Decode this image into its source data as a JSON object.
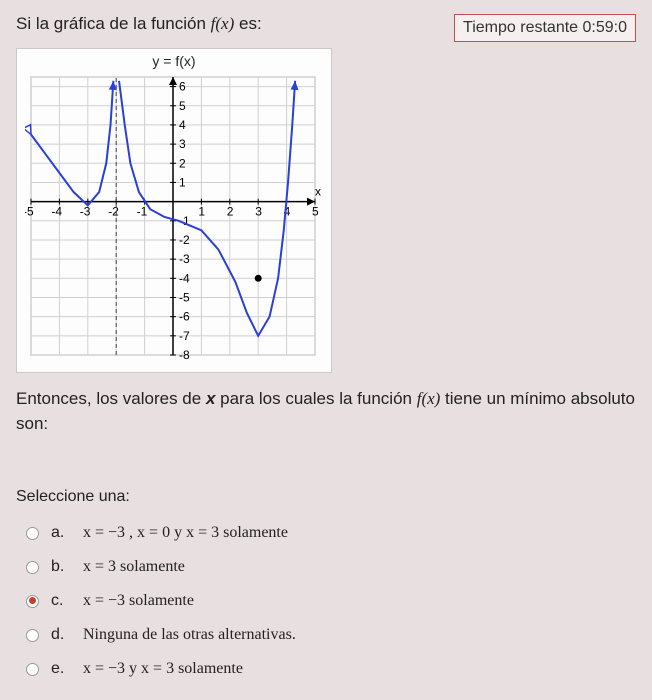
{
  "header": {
    "prompt_pre": "Si la gráfica de la función ",
    "prompt_fn": "f(x)",
    "prompt_post": " es:",
    "timer_label": "Tiempo restante 0:59:0"
  },
  "chart": {
    "type": "line",
    "title": "y = f(x)",
    "background_color": "#fdfdfd",
    "grid_color": "#d0d0d0",
    "axis_color": "#000000",
    "curve_color": "#2a3fd6",
    "curve_width": 2,
    "asymptote_color": "#404040",
    "asymptote_dash": "4,3",
    "xlim": [
      -5,
      5
    ],
    "ylim": [
      -8,
      6.5
    ],
    "xticks": [
      -5,
      -4,
      -3,
      -2,
      -1,
      1,
      2,
      3,
      4,
      5
    ],
    "yticks": [
      -8,
      -7,
      -6,
      -5,
      -4,
      -3,
      -2,
      -1,
      1,
      2,
      3,
      4,
      5,
      6
    ],
    "tick_fontsize": 12,
    "asymptote_x": -2,
    "segments": [
      {
        "points": [
          [
            -5,
            3.5
          ],
          [
            -4.5,
            2.5
          ],
          [
            -4,
            1.5
          ],
          [
            -3.5,
            0.5
          ],
          [
            -3,
            -0.2
          ],
          [
            -2.6,
            0.5
          ],
          [
            -2.35,
            2.0
          ],
          [
            -2.2,
            4.0
          ],
          [
            -2.1,
            6.3
          ]
        ]
      },
      {
        "points": [
          [
            -1.9,
            6.3
          ],
          [
            -1.7,
            4.0
          ],
          [
            -1.5,
            2.0
          ],
          [
            -1.2,
            0.5
          ],
          [
            -0.8,
            -0.4
          ],
          [
            -0.3,
            -0.8
          ],
          [
            0.2,
            -1.0
          ],
          [
            1.0,
            -1.5
          ],
          [
            1.6,
            -2.5
          ],
          [
            2.2,
            -4.2
          ],
          [
            2.6,
            -5.8
          ],
          [
            3.0,
            -7.0
          ],
          [
            3.4,
            -6.0
          ],
          [
            3.7,
            -4.0
          ],
          [
            3.9,
            -1.5
          ],
          [
            4.05,
            1.0
          ],
          [
            4.2,
            4.0
          ],
          [
            4.3,
            6.3
          ]
        ]
      }
    ],
    "open_arrows": [
      {
        "at": [
          -5,
          3.5
        ],
        "dir": [
          -0.5,
          1
        ]
      }
    ],
    "filled_points": [
      {
        "xy": [
          3,
          -4
        ],
        "r": 3.5,
        "fill": "#000000"
      }
    ]
  },
  "question": {
    "text_pre": "Entonces, los valores de ",
    "var": "x",
    "text_mid": " para los cuales la función ",
    "fn": "f(x)",
    "text_post": " tiene un mínimo absoluto son:"
  },
  "select_label": "Seleccione una:",
  "options": [
    {
      "letter": "a.",
      "text": "x = −3 , x = 0  y  x = 3  solamente",
      "selected": false
    },
    {
      "letter": "b.",
      "text": "x = 3  solamente",
      "selected": false
    },
    {
      "letter": "c.",
      "text": "x = −3  solamente",
      "selected": true
    },
    {
      "letter": "d.",
      "text": "Ninguna de las otras alternativas.",
      "selected": false
    },
    {
      "letter": "e.",
      "text": "x = −3  y  x = 3  solamente",
      "selected": false
    }
  ],
  "colors": {
    "page_bg": "#e8dfe0",
    "timer_border": "#c05050",
    "radio_selected": "#c8402a"
  }
}
